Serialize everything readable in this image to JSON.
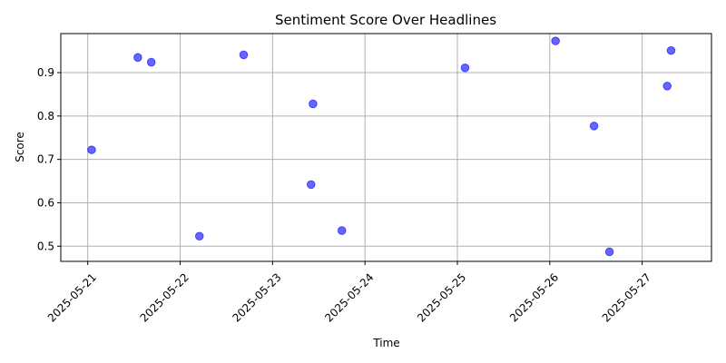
{
  "chart_data": {
    "type": "scatter",
    "title": "Sentiment Score Over Headlines",
    "xlabel": "Time",
    "ylabel": "Score",
    "x_tick_labels": [
      "2025-05-21",
      "2025-05-22",
      "2025-05-23",
      "2025-05-24",
      "2025-05-25",
      "2025-05-26",
      "2025-05-27"
    ],
    "y_tick_labels": [
      "0.5",
      "0.6",
      "0.7",
      "0.8",
      "0.9"
    ],
    "y_ticks": [
      0.5,
      0.6,
      0.7,
      0.8,
      0.9
    ],
    "xlim": [
      "2025-05-20 17:00",
      "2025-05-27 18:00"
    ],
    "ylim": [
      0.465,
      0.99
    ],
    "grid": true,
    "marker_color": "#0000ff",
    "marker_alpha": 0.6,
    "points": [
      {
        "x": "2025-05-21 01:00",
        "y": 0.722
      },
      {
        "x": "2025-05-21 13:00",
        "y": 0.935
      },
      {
        "x": "2025-05-21 16:30",
        "y": 0.924
      },
      {
        "x": "2025-05-22 05:00",
        "y": 0.523
      },
      {
        "x": "2025-05-22 16:30",
        "y": 0.941
      },
      {
        "x": "2025-05-23 10:00",
        "y": 0.642
      },
      {
        "x": "2025-05-23 10:30",
        "y": 0.828
      },
      {
        "x": "2025-05-23 18:00",
        "y": 0.536
      },
      {
        "x": "2025-05-25 02:00",
        "y": 0.911
      },
      {
        "x": "2025-05-26 01:30",
        "y": 0.973
      },
      {
        "x": "2025-05-26 11:30",
        "y": 0.777
      },
      {
        "x": "2025-05-26 15:30",
        "y": 0.487
      },
      {
        "x": "2025-05-27 06:30",
        "y": 0.869
      },
      {
        "x": "2025-05-27 07:30",
        "y": 0.951
      }
    ]
  }
}
